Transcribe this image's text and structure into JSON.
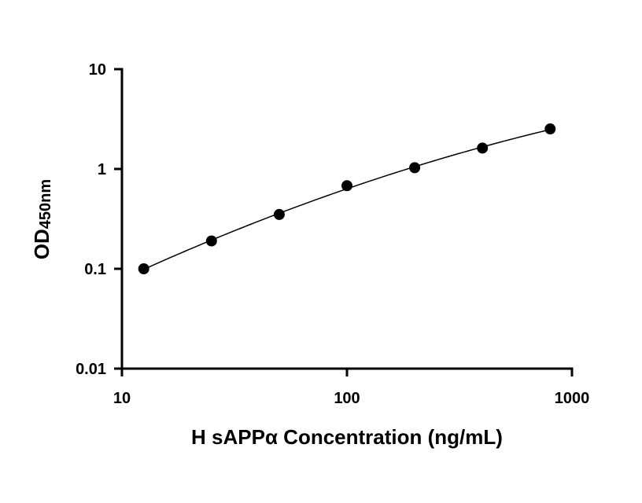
{
  "chart_data": {
    "type": "scatter",
    "xlabel": "H sAPPα Concentration (ng/mL)",
    "ylabel": {
      "main": "OD",
      "subscript": "450nm"
    },
    "x_scale": "log",
    "y_scale": "log",
    "xlim": [
      10,
      1000
    ],
    "ylim": [
      0.01,
      10
    ],
    "x_ticks": [
      10,
      100,
      1000
    ],
    "x_tick_labels": [
      "10",
      "100",
      "1000"
    ],
    "y_ticks": [
      0.01,
      0.1,
      1,
      10
    ],
    "y_tick_labels": [
      "0.01",
      "0.1",
      "1",
      "10"
    ],
    "grid": false,
    "series": [
      {
        "x": [
          12.5,
          25,
          50,
          100,
          200,
          400,
          800
        ],
        "y": [
          0.1,
          0.19,
          0.35,
          0.68,
          1.03,
          1.62,
          2.52
        ],
        "fit_line": true
      }
    ],
    "colors": {
      "marker": "#000000",
      "line": "#000000"
    }
  }
}
